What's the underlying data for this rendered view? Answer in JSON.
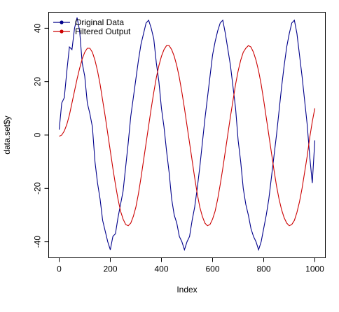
{
  "chart_data": {
    "type": "line",
    "title": "",
    "xlabel": "Index",
    "ylabel": "data.set$y",
    "xlim": [
      0,
      1000
    ],
    "ylim": [
      -46,
      46
    ],
    "x_ticks": [
      0,
      200,
      400,
      600,
      800,
      1000
    ],
    "y_ticks": [
      -40,
      -20,
      0,
      20,
      40
    ],
    "grid": false,
    "legend_position": "top-left",
    "series": [
      {
        "name": "Original Data",
        "color": "#00008B",
        "x": [
          0,
          10,
          20,
          30,
          40,
          50,
          60,
          70,
          80,
          90,
          100,
          110,
          120,
          130,
          140,
          150,
          160,
          170,
          180,
          190,
          200,
          210,
          220,
          230,
          240,
          250,
          260,
          270,
          280,
          290,
          300,
          310,
          320,
          330,
          340,
          350,
          360,
          370,
          380,
          390,
          400,
          410,
          420,
          430,
          440,
          450,
          460,
          470,
          480,
          490,
          500,
          510,
          520,
          530,
          540,
          550,
          560,
          570,
          580,
          590,
          600,
          610,
          620,
          630,
          640,
          650,
          660,
          670,
          680,
          690,
          700,
          710,
          720,
          730,
          740,
          750,
          760,
          770,
          780,
          790,
          800,
          810,
          820,
          830,
          840,
          850,
          860,
          870,
          880,
          890,
          900,
          910,
          920,
          930,
          940,
          950,
          960,
          970,
          980,
          990,
          1000
        ],
        "y": [
          2,
          12,
          14,
          24,
          33,
          32,
          40,
          44,
          39,
          27,
          22,
          12,
          8,
          3,
          -10,
          -18,
          -24,
          -32,
          -36,
          -40,
          -43,
          -38,
          -37,
          -31,
          -26,
          -21,
          -12,
          -3,
          7,
          14,
          21,
          28,
          34,
          38,
          42,
          43,
          40,
          36,
          27,
          20,
          10,
          3,
          -6,
          -14,
          -24,
          -30,
          -33,
          -38,
          -40,
          -43,
          -40,
          -38,
          -32,
          -27,
          -20,
          -12,
          -3,
          6,
          14,
          22,
          30,
          35,
          39,
          42,
          43,
          38,
          32,
          26,
          18,
          10,
          -2,
          -10,
          -20,
          -26,
          -30,
          -35,
          -38,
          -40,
          -43,
          -40,
          -35,
          -30,
          -24,
          -16,
          -8,
          0,
          9,
          18,
          26,
          33,
          38,
          42,
          43,
          38,
          30,
          22,
          13,
          4,
          -8,
          -18,
          -2
        ]
      },
      {
        "name": "Filtered Output",
        "color": "#CC0000",
        "x": [
          0,
          10,
          20,
          30,
          40,
          50,
          60,
          70,
          80,
          90,
          100,
          110,
          120,
          130,
          140,
          150,
          160,
          170,
          180,
          190,
          200,
          210,
          220,
          230,
          240,
          250,
          260,
          270,
          280,
          290,
          300,
          310,
          320,
          330,
          340,
          350,
          360,
          370,
          380,
          390,
          400,
          410,
          420,
          430,
          440,
          450,
          460,
          470,
          480,
          490,
          500,
          510,
          520,
          530,
          540,
          550,
          560,
          570,
          580,
          590,
          600,
          610,
          620,
          630,
          640,
          650,
          660,
          670,
          680,
          690,
          700,
          710,
          720,
          730,
          740,
          750,
          760,
          770,
          780,
          790,
          800,
          810,
          820,
          830,
          840,
          850,
          860,
          870,
          880,
          890,
          900,
          910,
          920,
          930,
          940,
          950,
          960,
          970,
          980,
          990,
          1000
        ],
        "y": [
          -0.5,
          0,
          1.5,
          4,
          7.5,
          12,
          16.5,
          21,
          25,
          28.5,
          31,
          32.5,
          32.5,
          31,
          28,
          24,
          19,
          13,
          7,
          0.5,
          -6,
          -12.5,
          -18.5,
          -24,
          -28.5,
          -31.5,
          -33.5,
          -34,
          -33,
          -30.5,
          -27,
          -22,
          -16,
          -9.5,
          -3,
          3.5,
          10,
          16,
          21.5,
          26,
          29.5,
          32,
          33.5,
          33.5,
          32,
          29.5,
          26,
          21.5,
          16,
          10,
          3.5,
          -3,
          -9.5,
          -16,
          -22,
          -27,
          -30.5,
          -33,
          -34,
          -33.5,
          -31.5,
          -28.5,
          -24,
          -18.5,
          -12.5,
          -6,
          0.5,
          7,
          13,
          19,
          24,
          28,
          31,
          32.5,
          33.5,
          33,
          31,
          28,
          24,
          19,
          13,
          6.5,
          0,
          -6.5,
          -13,
          -19,
          -24,
          -28,
          -31,
          -33,
          -34,
          -33.5,
          -32,
          -29,
          -25,
          -20,
          -14,
          -8,
          -1,
          5,
          10
        ]
      }
    ]
  }
}
